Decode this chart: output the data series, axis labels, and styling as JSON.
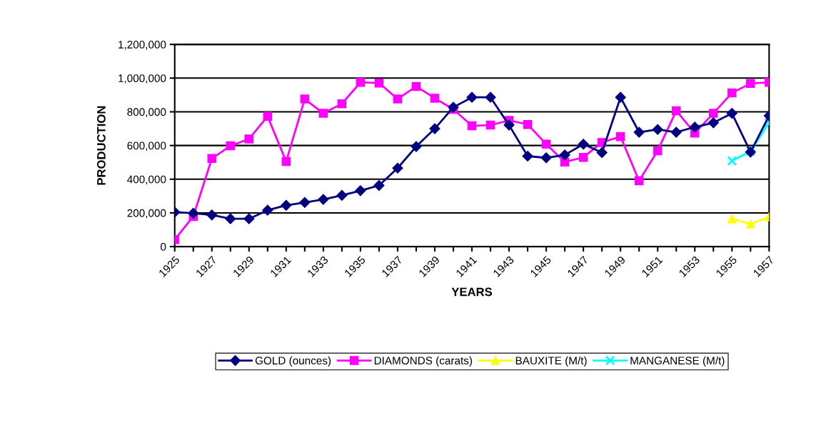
{
  "chart_data": {
    "type": "line",
    "xlabel": "YEARS",
    "ylabel": "PRODUCTION",
    "categories": [
      "1925",
      null,
      "1927",
      null,
      "1929",
      null,
      "1931",
      null,
      "1933",
      null,
      "1935",
      null,
      "1937",
      null,
      "1939",
      null,
      "1941",
      null,
      "1943",
      null,
      "1945",
      null,
      "1947",
      null,
      "1949",
      null,
      "1951",
      null,
      "1953",
      null,
      "1955",
      null,
      "1957"
    ],
    "series": [
      {
        "name": "GOLD (ounces)",
        "color": "#000080",
        "marker": "diamond",
        "values": [
          205000,
          198000,
          188000,
          165000,
          165000,
          216000,
          245000,
          262000,
          280000,
          304000,
          332000,
          363000,
          466000,
          594000,
          700000,
          827000,
          886000,
          886000,
          721000,
          537000,
          527000,
          544000,
          608000,
          558000,
          886000,
          679000,
          695000,
          679000,
          709000,
          735000,
          791000,
          561000,
          777000
        ]
      },
      {
        "name": "DIAMONDS (carats)",
        "color": "#ff00ff",
        "marker": "square",
        "values": [
          42000,
          179000,
          523000,
          598000,
          639000,
          773000,
          505000,
          876000,
          791000,
          848000,
          975000,
          971000,
          876000,
          951000,
          881000,
          815000,
          717000,
          721000,
          749000,
          725000,
          608000,
          502000,
          530000,
          618000,
          653000,
          391000,
          569000,
          806000,
          674000,
          791000,
          912000,
          968000,
          975000
        ]
      },
      {
        "name": "BAUXITE (M/t)",
        "color": "#ffff00",
        "marker": "triangle",
        "values": [
          null,
          null,
          null,
          null,
          null,
          null,
          null,
          null,
          null,
          null,
          null,
          null,
          null,
          null,
          null,
          null,
          null,
          null,
          null,
          null,
          null,
          null,
          null,
          null,
          null,
          null,
          null,
          null,
          null,
          null,
          165000,
          134000,
          177000
        ]
      },
      {
        "name": "MANGANESE (M/t)",
        "color": "#00ffff",
        "marker": "cross",
        "values": [
          null,
          null,
          null,
          null,
          null,
          null,
          null,
          null,
          null,
          null,
          null,
          null,
          null,
          null,
          null,
          null,
          null,
          null,
          null,
          null,
          null,
          null,
          null,
          null,
          null,
          null,
          null,
          null,
          null,
          null,
          509000,
          565000,
          735000
        ]
      }
    ],
    "ylim": [
      0,
      1200000
    ],
    "yticks": [
      {
        "value": 0,
        "label": "0"
      },
      {
        "value": 200000,
        "label": "200,000"
      },
      {
        "value": 400000,
        "label": "400,000"
      },
      {
        "value": 600000,
        "label": "600,000"
      },
      {
        "value": 800000,
        "label": "800,000"
      },
      {
        "value": 1000000,
        "label": "1,000,000"
      },
      {
        "value": 1200000,
        "label": "1,200,000"
      }
    ],
    "grid": "y",
    "legend": "bottom",
    "line_style": "solid"
  }
}
